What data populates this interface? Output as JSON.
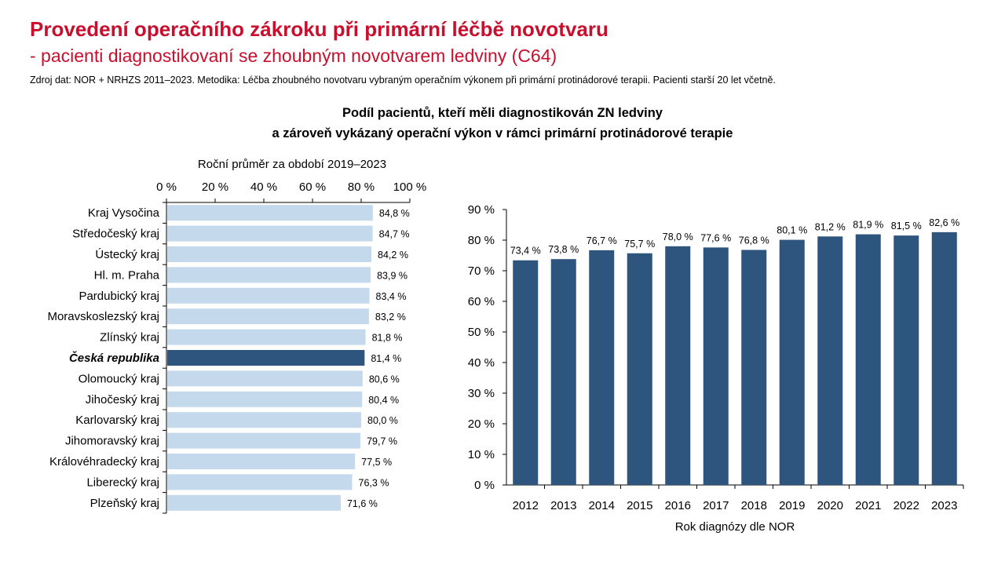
{
  "page": {
    "title": "Provedení operačního zákroku při primární léčbě novotvaru",
    "subtitle": "- pacienti diagnostikovaní se zhoubným novotvarem ledviny (C64)",
    "source": "Zdroj dat: NOR + NRHZS 2011–2023. Metodika: Léčba zhoubného novotvaru vybraným operačním výkonem při primární protinádorové terapii. Pacienti starší 20 let včetně.",
    "heading_line1": "Podíl pacientů, kteří měli diagnostikován ZN ledviny",
    "heading_line2": "a zároveň vykázaný operační výkon v rámci primární protinádorové terapie"
  },
  "colors": {
    "title": "#c8102e",
    "region_bar": "#c5d9ed",
    "highlight_bar": "#2e557d",
    "year_bar": "#2e557d"
  },
  "chart_data": [
    {
      "type": "bar",
      "orientation": "horizontal",
      "axis_title": "Roční průměr za období 2019–2023",
      "xlim": [
        0,
        100
      ],
      "ticks": [
        "0 %",
        "20 %",
        "40 %",
        "60 %",
        "80 %",
        "100 %"
      ],
      "categories": [
        "Kraj Vysočina",
        "Středočeský kraj",
        "Ústecký kraj",
        "Hl. m. Praha",
        "Pardubický kraj",
        "Moravskoslezský kraj",
        "Zlínský kraj",
        "Česká republika",
        "Olomoucký kraj",
        "Jihočeský kraj",
        "Karlovarský kraj",
        "Jihomoravský kraj",
        "Královéhradecký kraj",
        "Liberecký kraj",
        "Plzeňský kraj"
      ],
      "values": [
        84.8,
        84.7,
        84.2,
        83.9,
        83.4,
        83.2,
        81.8,
        81.4,
        80.6,
        80.4,
        80.0,
        79.7,
        77.5,
        76.3,
        71.6
      ],
      "labels": [
        "84,8 %",
        "84,7 %",
        "84,2 %",
        "83,9 %",
        "83,4 %",
        "83,2 %",
        "81,8 %",
        "81,4 %",
        "80,6 %",
        "80,4 %",
        "80,0 %",
        "79,7 %",
        "77,5 %",
        "76,3 %",
        "71,6 %"
      ],
      "highlight": "Česká republika"
    },
    {
      "type": "bar",
      "orientation": "vertical",
      "xlabel": "Rok diagnózy dle NOR",
      "ylim": [
        0,
        90
      ],
      "ticks": [
        "0 %",
        "10 %",
        "20 %",
        "30 %",
        "40 %",
        "50 %",
        "60 %",
        "70 %",
        "80 %",
        "90 %"
      ],
      "categories": [
        "2012",
        "2013",
        "2014",
        "2015",
        "2016",
        "2017",
        "2018",
        "2019",
        "2020",
        "2021",
        "2022",
        "2023"
      ],
      "values": [
        73.4,
        73.8,
        76.7,
        75.7,
        78.0,
        77.6,
        76.8,
        80.1,
        81.2,
        81.9,
        81.5,
        82.6
      ],
      "labels": [
        "73,4 %",
        "73,8 %",
        "76,7 %",
        "75,7 %",
        "78,0 %",
        "77,6 %",
        "76,8 %",
        "80,1 %",
        "81,2 %",
        "81,9 %",
        "81,5 %",
        "82,6 %"
      ]
    }
  ]
}
